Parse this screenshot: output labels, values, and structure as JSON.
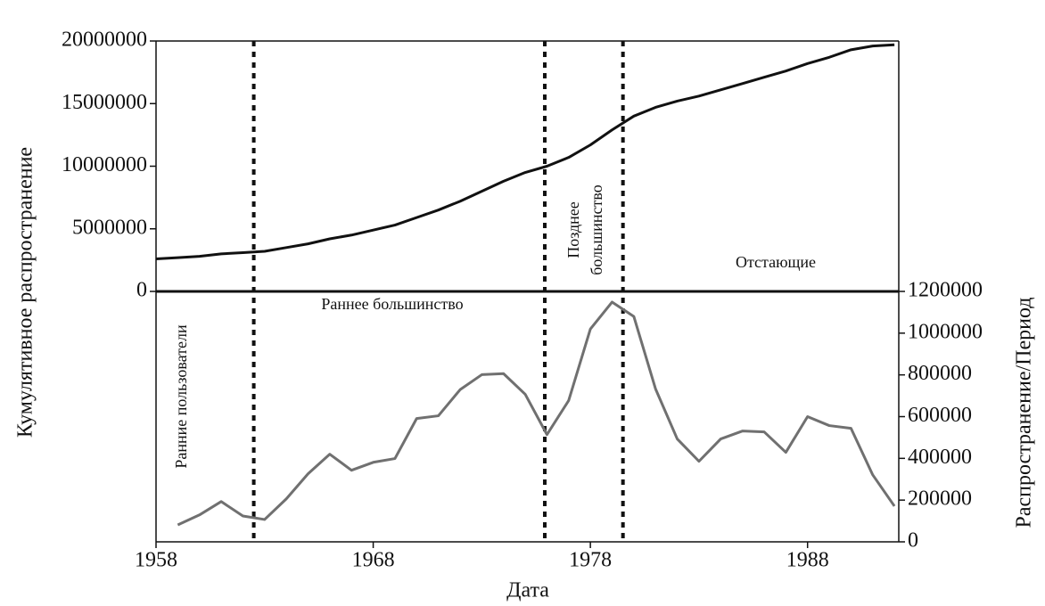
{
  "chart_data": {
    "type": "line",
    "xlabel": "Дата",
    "ylabel": "Кумулятивное распространение",
    "y2label": "Распространение/Период",
    "x": [
      1958,
      1959,
      1960,
      1961,
      1962,
      1963,
      1964,
      1965,
      1966,
      1967,
      1968,
      1969,
      1970,
      1971,
      1972,
      1973,
      1974,
      1975,
      1976,
      1977,
      1978,
      1979,
      1980,
      1981,
      1982,
      1983,
      1984,
      1985,
      1986,
      1987,
      1988,
      1989,
      1990,
      1991,
      1992
    ],
    "series": [
      {
        "color": "#111111",
        "axis": "y",
        "values": [
          2600000,
          2700000,
          2800000,
          3000000,
          3100000,
          3200000,
          3500000,
          3800000,
          4200000,
          4500000,
          4900000,
          5300000,
          5900000,
          6500000,
          7200000,
          8000000,
          8800000,
          9500000,
          10000000,
          10700000,
          11700000,
          12900000,
          14000000,
          14700000,
          15200000,
          15600000,
          16100000,
          16600000,
          17100000,
          17600000,
          18200000,
          18700000,
          19300000,
          19600000,
          19700000
        ]
      },
      {
        "color": "#707070",
        "axis": "y2",
        "values": [
          null,
          81000,
          129000,
          193000,
          124000,
          107000,
          206000,
          326000,
          420000,
          343000,
          381000,
          399000,
          591000,
          604000,
          729000,
          801000,
          806000,
          707000,
          514000,
          677000,
          1020000,
          1149000,
          1080000,
          733000,
          493000,
          386000,
          493000,
          531000,
          527000,
          429000,
          600000,
          557000,
          544000,
          321000,
          171000
        ]
      }
    ],
    "xlim": [
      1958,
      1992.2
    ],
    "xticks": [
      1958,
      1968,
      1978,
      1988
    ],
    "ylim": [
      -20000000,
      20000000
    ],
    "yticks": [
      0,
      5000000,
      10000000,
      15000000,
      20000000
    ],
    "y2lim": [
      0,
      2400000
    ],
    "y2ticks": [
      0,
      200000,
      400000,
      600000,
      800000,
      1000000,
      1200000
    ],
    "vlines": [
      1962.5,
      1975.9,
      1979.5
    ],
    "annotations": [
      "Ранние пользователи",
      "Раннее большинство",
      "Позднее",
      "большинство",
      "Отстающие"
    ]
  }
}
